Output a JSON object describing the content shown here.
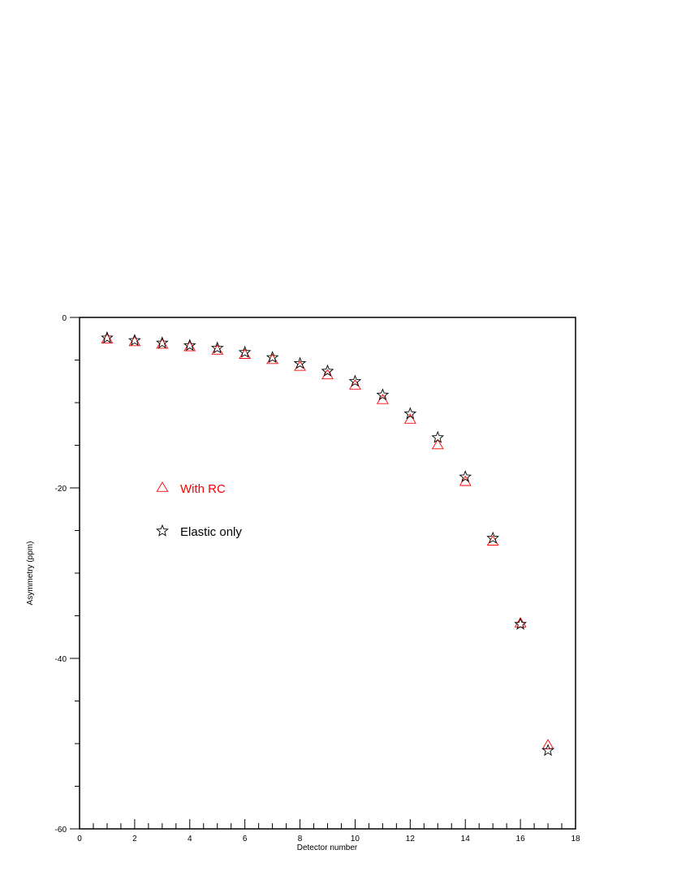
{
  "chart_data": {
    "type": "scatter",
    "title": "",
    "xlabel": "Detector number",
    "ylabel": "Asymmetry (ppm)",
    "xlim": [
      0,
      18
    ],
    "ylim": [
      -60,
      0
    ],
    "x_major_ticks": [
      0,
      2,
      4,
      6,
      8,
      10,
      12,
      14,
      16,
      18
    ],
    "x_minor_step": 0.5,
    "y_major_ticks": [
      0,
      -20,
      -40,
      -60
    ],
    "y_minor_step": 5,
    "grid": false,
    "legend_position": "left-middle",
    "series": [
      {
        "name": "With RC",
        "marker": "triangle",
        "color": "#ff0000",
        "x": [
          1,
          2,
          3,
          4,
          5,
          6,
          7,
          8,
          9,
          10,
          11,
          12,
          13,
          14,
          15,
          16,
          17
        ],
        "y": [
          -2.6,
          -2.9,
          -3.2,
          -3.5,
          -3.9,
          -4.4,
          -5.0,
          -5.8,
          -6.8,
          -8.0,
          -9.7,
          -12.0,
          -15.0,
          -19.3,
          -26.3,
          -35.9,
          -50.2
        ]
      },
      {
        "name": "Elastic only",
        "marker": "star",
        "color": "#000000",
        "x": [
          1,
          2,
          3,
          4,
          5,
          6,
          7,
          8,
          9,
          10,
          11,
          12,
          13,
          14,
          15,
          16,
          17
        ],
        "y": [
          -2.4,
          -2.7,
          -3.0,
          -3.3,
          -3.6,
          -4.1,
          -4.7,
          -5.4,
          -6.3,
          -7.5,
          -9.1,
          -11.3,
          -14.1,
          -18.7,
          -25.9,
          -36.0,
          -50.8
        ]
      }
    ]
  }
}
